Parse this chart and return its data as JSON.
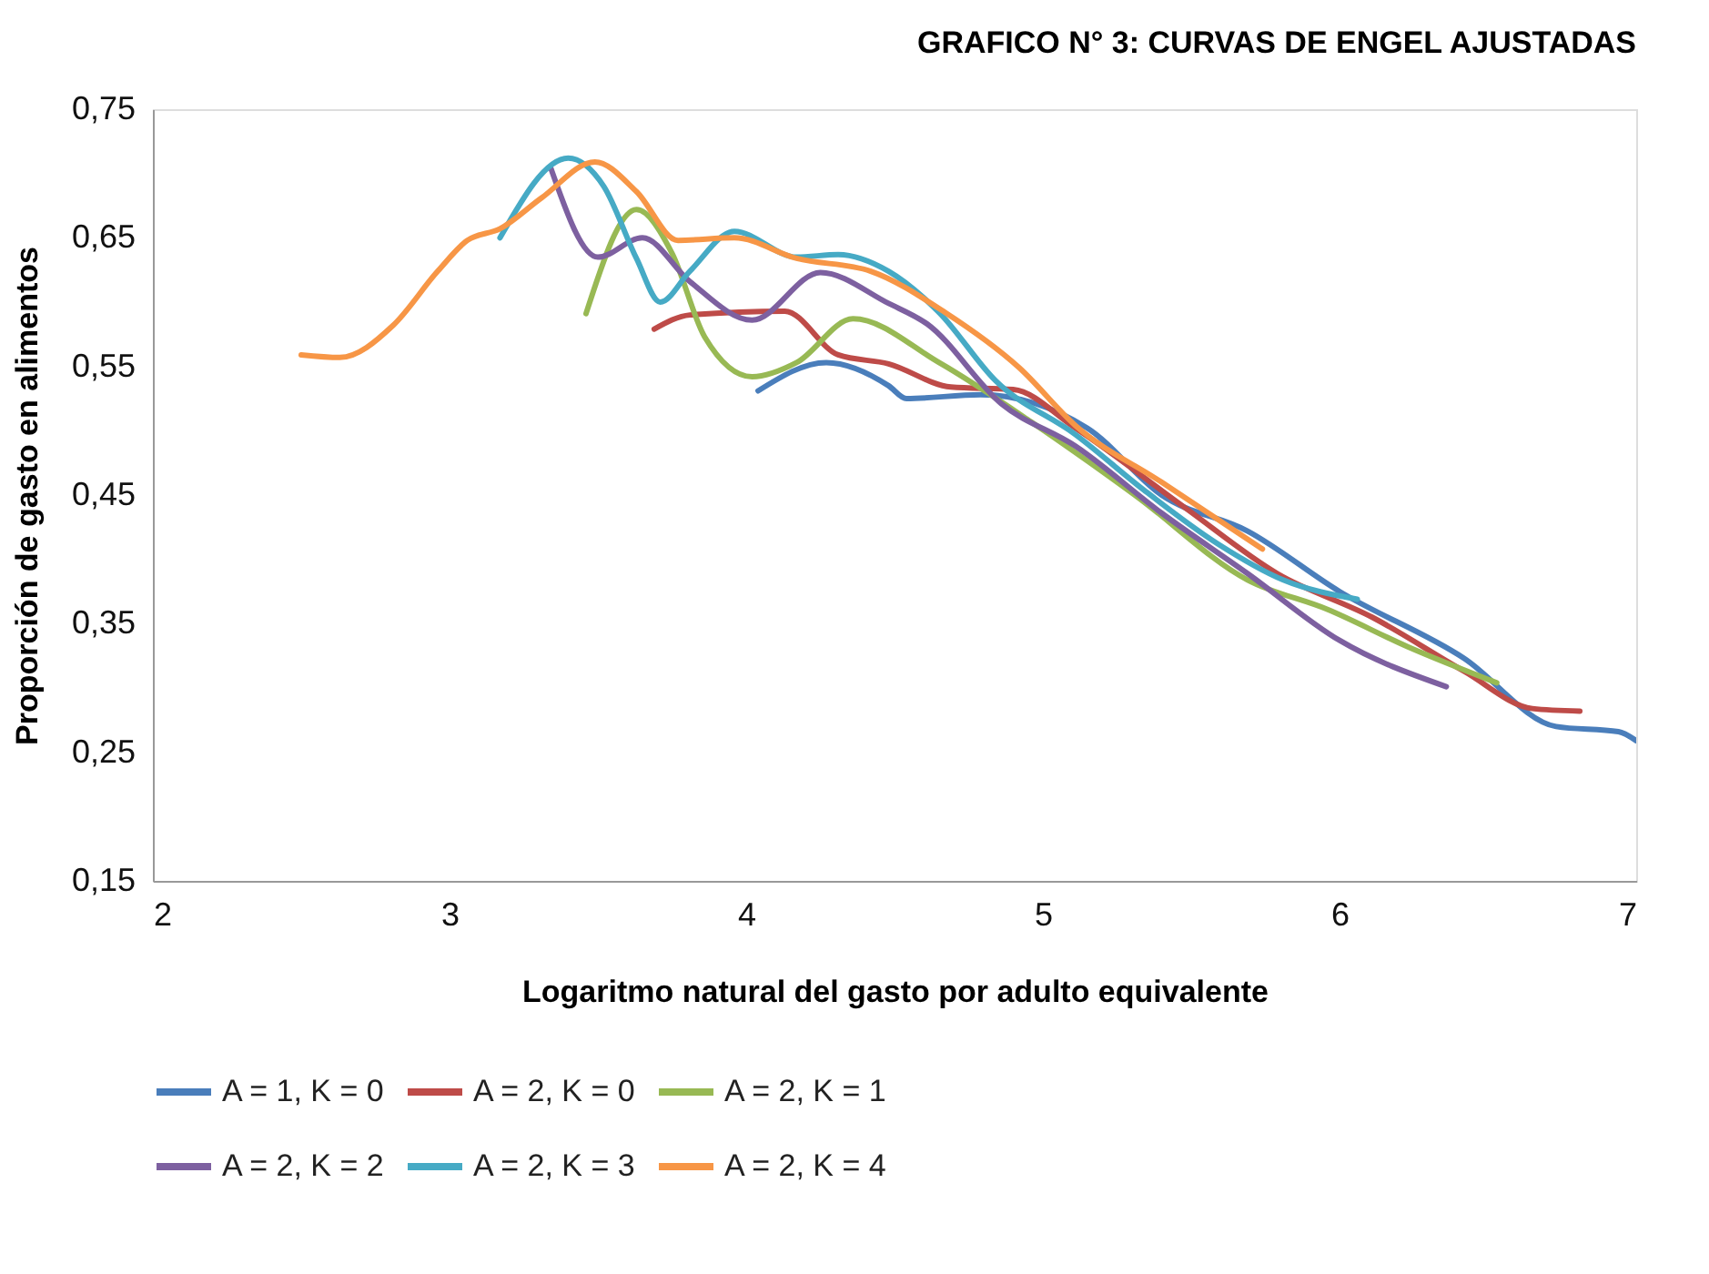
{
  "chart_data": {
    "type": "line",
    "title": "GRAFICO N° 3: CURVAS DE ENGEL AJUSTADAS",
    "xlabel": "Logaritmo natural del gasto por adulto equivalente",
    "ylabel": "Proporción de gasto en alimentos",
    "xlim": [
      2,
      7
    ],
    "xticks": [
      2,
      3,
      4,
      5,
      6,
      7
    ],
    "ylim": [
      0.15,
      0.75
    ],
    "yticks": [
      {
        "value": 0.15,
        "label": "0,15"
      },
      {
        "value": 0.25,
        "label": "0,25"
      },
      {
        "value": 0.35,
        "label": "0,35"
      },
      {
        "value": 0.45,
        "label": "0,45"
      },
      {
        "value": 0.55,
        "label": "0,55"
      },
      {
        "value": 0.65,
        "label": "0,65"
      },
      {
        "value": 0.75,
        "label": "0,75"
      }
    ],
    "grid": false,
    "legend": "bottom",
    "marker": "none",
    "line_style": "solid",
    "series": [
      {
        "name": "A = 1, K = 0",
        "color": "#4a7ebb",
        "x": [
          4.04,
          4.27,
          4.48,
          4.54,
          4.79,
          5.15,
          5.4,
          5.69,
          6.0,
          6.42,
          6.73,
          6.94,
          7.0
        ],
        "values": [
          0.531,
          0.553,
          0.535,
          0.525,
          0.528,
          0.502,
          0.45,
          0.422,
          0.375,
          0.323,
          0.27,
          0.266,
          0.259
        ]
      },
      {
        "name": "A = 2, K = 0",
        "color": "#be4b48",
        "x": [
          3.69,
          3.81,
          4.13,
          4.31,
          4.48,
          4.69,
          4.9,
          5.11,
          5.48,
          5.79,
          6.11,
          6.42,
          6.65,
          6.81
        ],
        "values": [
          0.579,
          0.59,
          0.593,
          0.559,
          0.552,
          0.534,
          0.532,
          0.502,
          0.44,
          0.389,
          0.355,
          0.313,
          0.284,
          0.282
        ]
      },
      {
        "name": "A = 2, K = 1",
        "color": "#98b954",
        "x": [
          3.46,
          3.63,
          3.75,
          3.86,
          4.02,
          4.17,
          4.36,
          4.65,
          4.96,
          5.31,
          5.69,
          5.96,
          6.23,
          6.53
        ],
        "values": [
          0.591,
          0.672,
          0.638,
          0.573,
          0.542,
          0.553,
          0.587,
          0.553,
          0.507,
          0.45,
          0.384,
          0.361,
          0.332,
          0.304
        ]
      },
      {
        "name": "A = 2, K = 2",
        "color": "#7d60a0",
        "x": [
          3.34,
          3.5,
          3.65,
          3.81,
          4.02,
          4.25,
          4.48,
          4.61,
          4.86,
          5.11,
          5.4,
          5.69,
          6.0,
          6.36
        ],
        "values": [
          0.705,
          0.635,
          0.65,
          0.616,
          0.586,
          0.623,
          0.599,
          0.583,
          0.521,
          0.488,
          0.436,
          0.389,
          0.337,
          0.301
        ]
      },
      {
        "name": "A = 2, K = 3",
        "color": "#46aac5",
        "x": [
          3.17,
          3.4,
          3.52,
          3.63,
          3.71,
          3.81,
          3.96,
          4.17,
          4.31,
          4.48,
          4.65,
          4.84,
          5.11,
          5.34,
          5.59,
          5.81,
          6.06
        ],
        "values": [
          0.65,
          0.712,
          0.69,
          0.634,
          0.6,
          0.624,
          0.655,
          0.635,
          0.637,
          0.624,
          0.592,
          0.539,
          0.497,
          0.454,
          0.412,
          0.384,
          0.369
        ]
      },
      {
        "name": "A = 2, K = 4",
        "color": "#f79646",
        "x": [
          2.5,
          2.63,
          2.81,
          2.96,
          3.06,
          3.17,
          3.31,
          3.49,
          3.63,
          3.77,
          3.96,
          4.17,
          4.42,
          4.67,
          4.92,
          5.11,
          5.4,
          5.74
        ],
        "values": [
          0.559,
          0.557,
          0.582,
          0.624,
          0.648,
          0.657,
          0.681,
          0.709,
          0.686,
          0.648,
          0.65,
          0.634,
          0.624,
          0.592,
          0.549,
          0.504,
          0.46,
          0.408
        ]
      }
    ]
  }
}
